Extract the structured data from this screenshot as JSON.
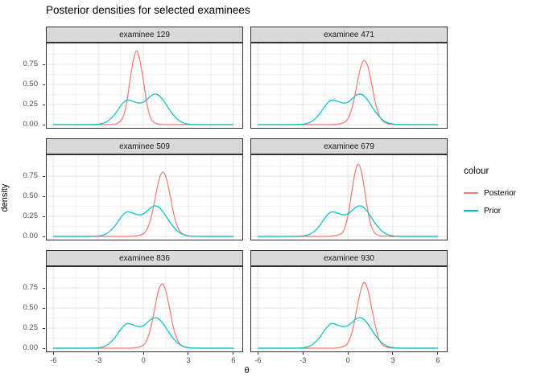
{
  "chart_data": {
    "type": "line",
    "title": "Posterior densities for selected examinees",
    "xlabel": "θ",
    "ylabel": "density",
    "xlim": [
      -6.5,
      6.65
    ],
    "ylim": [
      -0.05,
      1.02
    ],
    "x_tick_values": [
      -6,
      -3,
      0,
      3,
      6
    ],
    "x_tick_labels": [
      "-6",
      "-3",
      "0",
      "3",
      "6"
    ],
    "x_minor_ticks": [
      -4.5,
      -1.5,
      1.5,
      4.5
    ],
    "y_tick_values": [
      0,
      0.25,
      0.5,
      0.75
    ],
    "y_tick_labels": [
      "0.00",
      "0.25",
      "0.50",
      "0.75"
    ],
    "y_minor_ticks": [
      0.125,
      0.375,
      0.625,
      0.875
    ],
    "grid": "on",
    "legend": {
      "title": "colour",
      "position": "right",
      "entries": [
        {
          "label": "Posterior",
          "color": "#F8766D"
        },
        {
          "label": "Prior",
          "color": "#00BFC4"
        }
      ]
    },
    "colors": {
      "posterior": "#F8766D",
      "prior": "#00BFC4",
      "strip_bg": "#D9D9D9",
      "panel_border": "#333333",
      "grid_major": "#E4E4E4",
      "grid_minor": "#F1F1F1",
      "axis_text": "#4D4D4D"
    },
    "prior_curve": [
      [
        -6,
        0
      ],
      [
        -4.5,
        0
      ],
      [
        -3.6,
        0.001
      ],
      [
        -3.1,
        0.004
      ],
      [
        -2.8,
        0.012
      ],
      [
        -2.5,
        0.03
      ],
      [
        -2.2,
        0.07
      ],
      [
        -1.9,
        0.13
      ],
      [
        -1.6,
        0.21
      ],
      [
        -1.35,
        0.27
      ],
      [
        -1.1,
        0.305
      ],
      [
        -0.85,
        0.3
      ],
      [
        -0.6,
        0.283
      ],
      [
        -0.35,
        0.27
      ],
      [
        -0.1,
        0.272
      ],
      [
        0.15,
        0.3
      ],
      [
        0.4,
        0.343
      ],
      [
        0.65,
        0.375
      ],
      [
        0.85,
        0.38
      ],
      [
        1.05,
        0.36
      ],
      [
        1.3,
        0.31
      ],
      [
        1.55,
        0.24
      ],
      [
        1.8,
        0.17
      ],
      [
        2.05,
        0.11
      ],
      [
        2.3,
        0.062
      ],
      [
        2.6,
        0.028
      ],
      [
        2.9,
        0.01
      ],
      [
        3.2,
        0.003
      ],
      [
        3.6,
        0.001
      ],
      [
        4.2,
        0
      ],
      [
        6,
        0
      ]
    ],
    "facets": [
      {
        "label": "examinee 129",
        "posterior": [
          [
            -6,
            0
          ],
          [
            -2.6,
            0
          ],
          [
            -2.1,
            0.003
          ],
          [
            -1.8,
            0.01
          ],
          [
            -1.5,
            0.05
          ],
          [
            -1.3,
            0.125
          ],
          [
            -1.1,
            0.29
          ],
          [
            -0.9,
            0.54
          ],
          [
            -0.66,
            0.81
          ],
          [
            -0.45,
            0.92
          ],
          [
            -0.24,
            0.81
          ],
          [
            0,
            0.55
          ],
          [
            0.2,
            0.3
          ],
          [
            0.41,
            0.125
          ],
          [
            0.6,
            0.05
          ],
          [
            0.9,
            0.012
          ],
          [
            1.4,
            0.001
          ],
          [
            2,
            0
          ],
          [
            6,
            0
          ]
        ]
      },
      {
        "label": "examinee 471",
        "posterior": [
          [
            -6,
            0
          ],
          [
            -1.4,
            0
          ],
          [
            -0.9,
            0.003
          ],
          [
            -0.5,
            0.012
          ],
          [
            -0.15,
            0.04
          ],
          [
            0.1,
            0.11
          ],
          [
            0.35,
            0.26
          ],
          [
            0.6,
            0.49
          ],
          [
            0.85,
            0.71
          ],
          [
            1.1,
            0.8
          ],
          [
            1.35,
            0.71
          ],
          [
            1.6,
            0.49
          ],
          [
            1.85,
            0.26
          ],
          [
            2.1,
            0.11
          ],
          [
            2.35,
            0.04
          ],
          [
            2.7,
            0.01
          ],
          [
            3.2,
            0.001
          ],
          [
            3.8,
            0
          ],
          [
            6,
            0
          ]
        ]
      },
      {
        "label": "examinee 509",
        "posterior": [
          [
            -6,
            0
          ],
          [
            -1.2,
            0
          ],
          [
            -0.7,
            0.003
          ],
          [
            -0.3,
            0.012
          ],
          [
            0.05,
            0.04
          ],
          [
            0.3,
            0.11
          ],
          [
            0.55,
            0.26
          ],
          [
            0.8,
            0.49
          ],
          [
            1.05,
            0.71
          ],
          [
            1.3,
            0.8
          ],
          [
            1.55,
            0.71
          ],
          [
            1.8,
            0.49
          ],
          [
            2.05,
            0.26
          ],
          [
            2.3,
            0.11
          ],
          [
            2.55,
            0.04
          ],
          [
            2.9,
            0.01
          ],
          [
            3.4,
            0.001
          ],
          [
            4,
            0
          ],
          [
            6,
            0
          ]
        ]
      },
      {
        "label": "examinee 679",
        "posterior": [
          [
            -6,
            0
          ],
          [
            -1.6,
            0
          ],
          [
            -1.1,
            0.004
          ],
          [
            -0.7,
            0.015
          ],
          [
            -0.4,
            0.04
          ],
          [
            -0.18,
            0.12
          ],
          [
            0.04,
            0.29
          ],
          [
            0.26,
            0.55
          ],
          [
            0.48,
            0.79
          ],
          [
            0.7,
            0.9
          ],
          [
            0.92,
            0.79
          ],
          [
            1.14,
            0.55
          ],
          [
            1.36,
            0.29
          ],
          [
            1.58,
            0.12
          ],
          [
            1.8,
            0.04
          ],
          [
            2.1,
            0.01
          ],
          [
            2.6,
            0.001
          ],
          [
            3.2,
            0
          ],
          [
            6,
            0
          ]
        ]
      },
      {
        "label": "examinee 836",
        "posterior": [
          [
            -6,
            0
          ],
          [
            -1.3,
            0
          ],
          [
            -0.75,
            0.003
          ],
          [
            -0.35,
            0.012
          ],
          [
            0,
            0.04
          ],
          [
            0.25,
            0.11
          ],
          [
            0.5,
            0.26
          ],
          [
            0.75,
            0.49
          ],
          [
            1,
            0.71
          ],
          [
            1.25,
            0.8
          ],
          [
            1.5,
            0.71
          ],
          [
            1.75,
            0.49
          ],
          [
            2,
            0.26
          ],
          [
            2.25,
            0.11
          ],
          [
            2.5,
            0.04
          ],
          [
            2.85,
            0.01
          ],
          [
            3.35,
            0.001
          ],
          [
            3.9,
            0
          ],
          [
            6,
            0
          ]
        ]
      },
      {
        "label": "examinee 930",
        "posterior": [
          [
            -6,
            0
          ],
          [
            -1.4,
            0
          ],
          [
            -0.85,
            0.003
          ],
          [
            -0.45,
            0.013
          ],
          [
            -0.12,
            0.04
          ],
          [
            0.12,
            0.11
          ],
          [
            0.37,
            0.27
          ],
          [
            0.61,
            0.5
          ],
          [
            0.86,
            0.72
          ],
          [
            1.1,
            0.82
          ],
          [
            1.34,
            0.72
          ],
          [
            1.59,
            0.5
          ],
          [
            1.84,
            0.27
          ],
          [
            2.08,
            0.11
          ],
          [
            2.33,
            0.04
          ],
          [
            2.65,
            0.01
          ],
          [
            3.1,
            0.001
          ],
          [
            3.7,
            0
          ],
          [
            6,
            0
          ]
        ]
      }
    ]
  }
}
